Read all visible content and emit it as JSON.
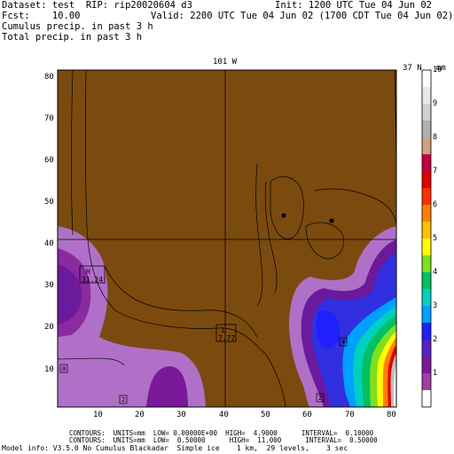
{
  "header": {
    "dataset_line": "Dataset: test  RIP: rip20020604 d3",
    "init_line": "Init: 1200 UTC Tue 04 Jun 02",
    "fcst_line": "Fcst:    10.00",
    "valid_line": "Valid: 2200 UTC Tue 04 Jun 02 (1700 CDT Tue 04 Jun 02)",
    "field1": "Cumulus precip. in past 3 h",
    "field2": "Total precip. in past 3 h"
  },
  "map": {
    "top_label": "101 W",
    "corner_label": "37 N",
    "unit": "mm",
    "x_ticks": [
      "10",
      "20",
      "30",
      "40",
      "50",
      "60",
      "70",
      "80"
    ],
    "y_ticks": [
      "10",
      "20",
      "30",
      "40",
      "50",
      "60",
      "70",
      "80"
    ],
    "x_range": [
      1,
      81
    ],
    "y_range": [
      1,
      81
    ],
    "background_color": "#7b4a0f",
    "high_box": {
      "letter": "H",
      "value": "31.24"
    },
    "low_box": {
      "letter": "L",
      "value": "7.77"
    },
    "small_labels": [
      "0",
      "2",
      "2",
      "4"
    ]
  },
  "colorbar": {
    "labels": [
      "1",
      "2",
      "3",
      "4",
      "5",
      "6",
      "7",
      "8",
      "9",
      "10"
    ],
    "colors": [
      "#ffffff",
      "#a040a0",
      "#7a1a9a",
      "#5a20c8",
      "#2020ff",
      "#00a0ff",
      "#00d0c0",
      "#00c060",
      "#80e020",
      "#ffff00",
      "#ffc000",
      "#ff8000",
      "#ff3000",
      "#e00000",
      "#c00040",
      "#d0a080",
      "#b0b0b0",
      "#d0d0d0",
      "#e8e8e8",
      "#ffffff"
    ]
  },
  "footer": {
    "line1": "CONTOURS:  UNITS=mm  LOW= 0.00000E+00  HIGH=  4.9000      INTERVAL=  0.10000",
    "line2": "CONTOURS:  UNITS=mm  LOW=  0.50000      HIGH=  11.000      INTERVAL=  0.50000",
    "line3": "Model info: V3.5.0 No Cumulus Blackadar  Simple ice    1 km,  29 levels,    3 sec"
  }
}
